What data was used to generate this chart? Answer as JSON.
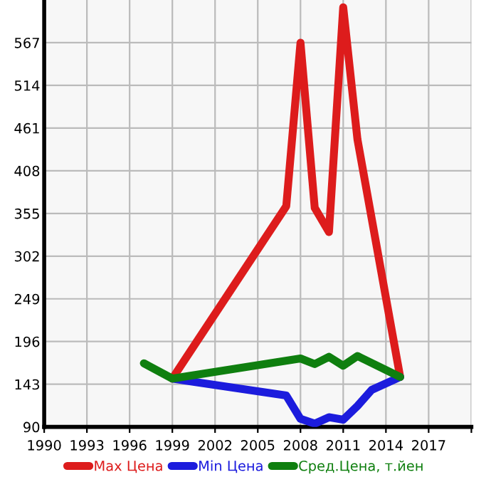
{
  "chart_data": {
    "type": "line",
    "series": [
      {
        "name": "Max Цена",
        "color": "#dd1c1c",
        "x": [
          1999,
          2007,
          2008,
          2009,
          2010,
          2011,
          2012,
          2015
        ],
        "values": [
          150,
          364,
          567,
          362,
          332,
          611,
          447,
          152
        ]
      },
      {
        "name": "Min Цена",
        "color": "#1c1cdd",
        "x": [
          1999,
          2007,
          2008,
          2009,
          2010,
          2011,
          2012,
          2013,
          2015
        ],
        "values": [
          150,
          129,
          100,
          94,
          102,
          99,
          116,
          136,
          152
        ]
      },
      {
        "name": "Сред.Цена, т.йен",
        "color": "#0f7f0f",
        "x": [
          1997,
          1999,
          2008,
          2009,
          2010,
          2011,
          2012,
          2015
        ],
        "values": [
          169,
          150,
          175,
          168,
          177,
          166,
          178,
          152
        ]
      }
    ],
    "xlim": [
      1990,
      2020
    ],
    "xticks": [
      1990,
      1993,
      1996,
      1999,
      2002,
      2005,
      2008,
      2011,
      2014,
      2017,
      {
        "value": 2020,
        "label": null
      }
    ],
    "ylim": [
      90,
      620
    ],
    "yticks": [
      90,
      143,
      196,
      249,
      302,
      355,
      408,
      461,
      514,
      567
    ],
    "grid": true,
    "legend": "bottom",
    "marker": "none",
    "line_style": "solid"
  }
}
